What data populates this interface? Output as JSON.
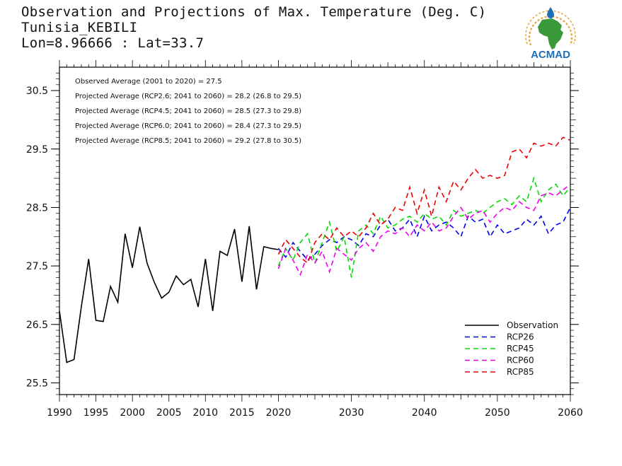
{
  "header": {
    "title": "Observation and Projections of Max. Temperature (Deg. C)",
    "location": "Tunisia_KEBILI",
    "coords": "Lon=8.96666 : Lat=33.7"
  },
  "logo": {
    "text": "ACMAD",
    "icon": "africa-map-logo",
    "colors": {
      "blue": "#1f6fb5",
      "green": "#3a9a3a",
      "orange": "#e8a33c"
    }
  },
  "stats": [
    "Observed Average (2001 to 2020) = 27.5",
    "Projected Average (RCP2.6; 2041 to 2060) = 28.2 (26.8 to 29.5)",
    "Projected Average (RCP4.5; 2041 to 2060) = 28.5 (27.3 to 29.8)",
    "Projected Average (RCP6.0; 2041 to 2060) = 28.4 (27.3 to 29.5)",
    "Projected Average (RCP8.5; 2041 to 2060) = 29.2 (27.8 to 30.5)"
  ],
  "chart_data": {
    "type": "line",
    "xlim": [
      1990,
      2060
    ],
    "ylim": [
      25.3,
      30.9
    ],
    "x_ticks": [
      1990,
      1995,
      2000,
      2005,
      2010,
      2015,
      2020,
      2030,
      2040,
      2050,
      2060
    ],
    "y_ticks": [
      25.5,
      26.5,
      27.5,
      28.5,
      29.5,
      30.5
    ],
    "legend_position": "bottom-right",
    "series": [
      {
        "name": "Observation",
        "color": "#000000",
        "dashed": false,
        "x": [
          1990,
          1991,
          1992,
          1993,
          1994,
          1995,
          1996,
          1997,
          1998,
          1999,
          2000,
          2001,
          2002,
          2003,
          2004,
          2005,
          2006,
          2007,
          2008,
          2009,
          2010,
          2011,
          2012,
          2013,
          2014,
          2015,
          2016,
          2017,
          2018,
          2019,
          2020
        ],
        "y": [
          26.73,
          25.85,
          25.9,
          26.8,
          27.62,
          26.57,
          26.55,
          27.15,
          26.88,
          28.05,
          27.47,
          28.17,
          27.55,
          27.22,
          26.95,
          27.05,
          27.33,
          27.18,
          27.27,
          26.8,
          27.62,
          26.73,
          27.75,
          27.68,
          28.13,
          27.23,
          28.18,
          27.1,
          27.83,
          27.8,
          27.78
        ]
      },
      {
        "name": "RCP26",
        "color": "#0000ee",
        "dashed": true,
        "x": [
          2020,
          2021,
          2022,
          2023,
          2024,
          2025,
          2026,
          2027,
          2028,
          2029,
          2030,
          2031,
          2032,
          2033,
          2034,
          2035,
          2036,
          2037,
          2038,
          2039,
          2040,
          2041,
          2042,
          2043,
          2044,
          2045,
          2046,
          2047,
          2048,
          2049,
          2050,
          2051,
          2052,
          2053,
          2054,
          2055,
          2056,
          2057,
          2058,
          2059,
          2060
        ],
        "y": [
          27.8,
          27.65,
          27.9,
          27.75,
          27.6,
          27.7,
          27.85,
          27.95,
          27.9,
          28.0,
          27.95,
          27.85,
          28.05,
          28.0,
          28.2,
          28.3,
          28.1,
          28.15,
          28.3,
          28.0,
          28.35,
          28.1,
          28.2,
          28.25,
          28.15,
          28.0,
          28.35,
          28.25,
          28.3,
          28.0,
          28.2,
          28.05,
          28.1,
          28.15,
          28.3,
          28.2,
          28.35,
          28.05,
          28.2,
          28.25,
          28.5
        ]
      },
      {
        "name": "RCP45",
        "color": "#00dd00",
        "dashed": true,
        "x": [
          2020,
          2021,
          2022,
          2023,
          2024,
          2025,
          2026,
          2027,
          2028,
          2029,
          2030,
          2031,
          2032,
          2033,
          2034,
          2035,
          2036,
          2037,
          2038,
          2039,
          2040,
          2041,
          2042,
          2043,
          2044,
          2045,
          2046,
          2047,
          2048,
          2049,
          2050,
          2051,
          2052,
          2053,
          2054,
          2055,
          2056,
          2057,
          2058,
          2059,
          2060
        ],
        "y": [
          27.5,
          27.8,
          27.6,
          27.9,
          28.05,
          27.55,
          27.9,
          28.25,
          27.75,
          28.0,
          27.3,
          28.1,
          28.2,
          28.05,
          28.35,
          28.15,
          28.2,
          28.3,
          28.35,
          28.25,
          28.4,
          28.3,
          28.35,
          28.2,
          28.45,
          28.35,
          28.4,
          28.45,
          28.4,
          28.5,
          28.6,
          28.65,
          28.55,
          28.7,
          28.6,
          29.0,
          28.6,
          28.8,
          28.9,
          28.7,
          28.85
        ]
      },
      {
        "name": "RCP60",
        "color": "#ee00ee",
        "dashed": true,
        "x": [
          2020,
          2021,
          2022,
          2023,
          2024,
          2025,
          2026,
          2027,
          2028,
          2029,
          2030,
          2031,
          2032,
          2033,
          2034,
          2035,
          2036,
          2037,
          2038,
          2039,
          2040,
          2041,
          2042,
          2043,
          2044,
          2045,
          2046,
          2047,
          2048,
          2049,
          2050,
          2051,
          2052,
          2053,
          2054,
          2055,
          2056,
          2057,
          2058,
          2059,
          2060
        ],
        "y": [
          27.45,
          27.8,
          27.6,
          27.35,
          27.7,
          27.55,
          27.75,
          27.4,
          27.8,
          27.7,
          27.6,
          27.8,
          27.9,
          27.75,
          28.0,
          28.1,
          28.05,
          28.15,
          28.0,
          28.2,
          28.1,
          28.25,
          28.1,
          28.15,
          28.35,
          28.5,
          28.3,
          28.4,
          28.45,
          28.25,
          28.4,
          28.5,
          28.45,
          28.6,
          28.5,
          28.45,
          28.7,
          28.75,
          28.7,
          28.8,
          28.9
        ]
      },
      {
        "name": "RCP85",
        "color": "#ee0000",
        "dashed": true,
        "x": [
          2020,
          2021,
          2022,
          2023,
          2024,
          2025,
          2026,
          2027,
          2028,
          2029,
          2030,
          2031,
          2032,
          2033,
          2034,
          2035,
          2036,
          2037,
          2038,
          2039,
          2040,
          2041,
          2042,
          2043,
          2044,
          2045,
          2046,
          2047,
          2048,
          2049,
          2050,
          2051,
          2052,
          2053,
          2054,
          2055,
          2056,
          2057,
          2058,
          2059,
          2060
        ],
        "y": [
          27.7,
          27.95,
          27.8,
          27.65,
          27.55,
          27.9,
          28.05,
          27.95,
          28.15,
          28.0,
          28.1,
          28.0,
          28.15,
          28.4,
          28.2,
          28.3,
          28.5,
          28.45,
          28.85,
          28.4,
          28.8,
          28.35,
          28.85,
          28.6,
          28.95,
          28.8,
          29.0,
          29.15,
          29.0,
          29.05,
          29.0,
          29.05,
          29.45,
          29.5,
          29.35,
          29.6,
          29.55,
          29.6,
          29.55,
          29.7,
          29.65
        ]
      }
    ]
  }
}
